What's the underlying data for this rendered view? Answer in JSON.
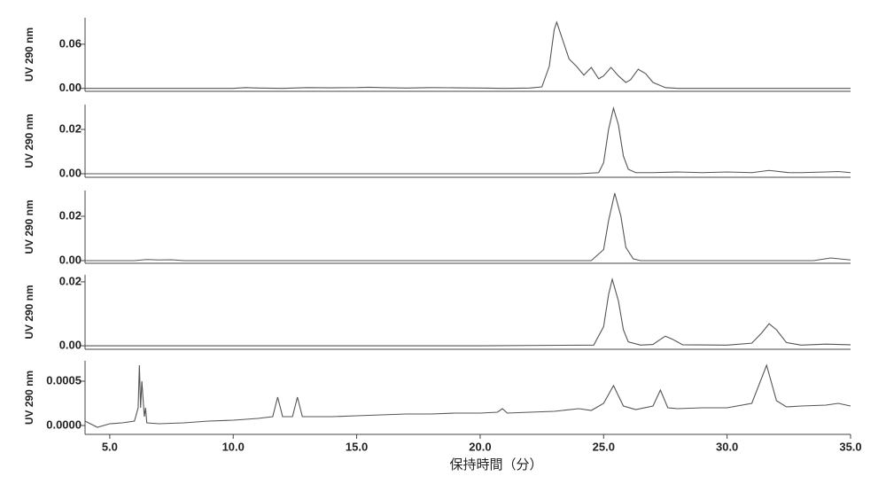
{
  "chart_data": [
    {
      "type": "line",
      "ylabel": "UV 290 nm",
      "color": "#555555",
      "xlim": [
        4,
        35
      ],
      "ylim": [
        -0.004,
        0.096
      ],
      "yticks": [
        {
          "value": 0,
          "label": "0.00"
        },
        0.06
      ],
      "x": [
        4,
        6,
        8,
        10,
        10.5,
        11,
        12,
        13,
        14,
        15,
        15.5,
        16,
        17,
        18,
        19,
        20,
        21,
        22,
        22.5,
        22.8,
        23.0,
        23.1,
        23.3,
        23.6,
        23.9,
        24.2,
        24.5,
        24.8,
        25.0,
        25.3,
        25.6,
        25.9,
        26.1,
        26.4,
        26.7,
        27.0,
        27.5,
        28,
        30,
        35
      ],
      "values": [
        0,
        0,
        0,
        0,
        0.001,
        0.0005,
        0,
        0.001,
        0.0008,
        0.001,
        0.0015,
        0.001,
        0.0005,
        0.001,
        0.0008,
        0.0005,
        0,
        0.0005,
        0.002,
        0.03,
        0.08,
        0.09,
        0.07,
        0.04,
        0.03,
        0.018,
        0.0285,
        0.013,
        0.017,
        0.0285,
        0.017,
        0.008,
        0.012,
        0.026,
        0.02,
        0.008,
        0.001,
        0,
        0,
        0
      ]
    },
    {
      "type": "line",
      "ylabel": "UV 290 nm",
      "color": "#555555",
      "xlim": [
        4,
        35
      ],
      "ylim": [
        -0.0016,
        0.0312
      ],
      "yticks": [
        {
          "value": 0,
          "label": "0.00"
        },
        0.02
      ],
      "x": [
        4,
        10,
        20,
        24,
        24.8,
        25.0,
        25.2,
        25.4,
        25.6,
        25.8,
        26.0,
        26.3,
        27,
        28,
        29,
        30,
        31,
        31.7,
        32.5,
        33,
        34,
        34.5,
        35
      ],
      "values": [
        0,
        0,
        0,
        0,
        0.0005,
        0.005,
        0.02,
        0.0296,
        0.022,
        0.008,
        0.002,
        0.0005,
        0.0005,
        0.0008,
        0.0005,
        0.0008,
        0.0005,
        0.0015,
        0.0005,
        0.0005,
        0.0008,
        0.001,
        0.0005
      ]
    },
    {
      "type": "line",
      "ylabel": "UV 290 nm",
      "color": "#555555",
      "xlim": [
        4,
        35
      ],
      "ylim": [
        -0.0012,
        0.0316
      ],
      "yticks": [
        {
          "value": 0,
          "label": "0.00"
        },
        0.02
      ],
      "x": [
        4,
        6,
        6.5,
        7,
        7.5,
        8,
        20,
        24.5,
        25.0,
        25.2,
        25.45,
        25.7,
        25.9,
        26.2,
        26.5,
        30,
        33.5,
        34.2,
        35
      ],
      "values": [
        0,
        0,
        0.0005,
        0.0003,
        0.0004,
        0,
        0,
        0,
        0.005,
        0.018,
        0.0304,
        0.02,
        0.006,
        0.0008,
        0,
        0,
        0,
        0.0012,
        0.0003
      ]
    },
    {
      "type": "line",
      "ylabel": "UV 290 nm",
      "color": "#555555",
      "xlim": [
        4,
        35
      ],
      "ylim": [
        -0.0011,
        0.0222
      ],
      "yticks": [
        {
          "value": 0,
          "label": "0.00"
        },
        0.02
      ],
      "x": [
        4,
        20,
        24.6,
        25.0,
        25.2,
        25.35,
        25.6,
        25.8,
        26.0,
        26.5,
        27.0,
        27.3,
        27.5,
        27.8,
        28.2,
        30,
        31.0,
        31.4,
        31.7,
        32.0,
        32.4,
        33,
        34,
        35
      ],
      "values": [
        0,
        0,
        0.0002,
        0.006,
        0.016,
        0.0208,
        0.014,
        0.005,
        0.0012,
        0.0002,
        0.0004,
        0.002,
        0.003,
        0.002,
        0.0003,
        0.0002,
        0.0008,
        0.004,
        0.0069,
        0.005,
        0.001,
        0.0002,
        0.0005,
        0.0003
      ]
    },
    {
      "type": "line",
      "ylabel": "UV 290 nm",
      "xlabel": "保持時間（分）",
      "color": "#555555",
      "xlim": [
        4,
        35
      ],
      "ylim": [
        -0.0001,
        0.00073
      ],
      "yticks": [
        {
          "value": 0,
          "label": "0.0000"
        },
        {
          "value": 0.0005,
          "label": "0.0005"
        }
      ],
      "xticks": [
        {
          "value": 5,
          "label": "5.0"
        },
        {
          "value": 10,
          "label": "10.0"
        },
        {
          "value": 15,
          "label": "15.0"
        },
        {
          "value": 20,
          "label": "20.0"
        },
        {
          "value": 25,
          "label": "25.0"
        },
        {
          "value": 30,
          "label": "30.0"
        },
        {
          "value": 35,
          "label": "35.0"
        }
      ],
      "x": [
        4,
        4.5,
        5,
        5.5,
        6.0,
        6.15,
        6.2,
        6.25,
        6.3,
        6.4,
        6.45,
        6.5,
        7,
        8,
        9,
        10,
        11,
        11.6,
        11.8,
        12.0,
        12.4,
        12.6,
        12.8,
        13,
        14,
        15,
        16,
        17,
        18,
        19,
        20,
        20.7,
        20.9,
        21.1,
        22,
        23,
        24,
        24.5,
        25.0,
        25.4,
        25.8,
        26.3,
        27.0,
        27.3,
        27.6,
        28,
        29,
        30,
        31.0,
        31.6,
        32.0,
        32.4,
        33,
        34,
        34.5,
        35
      ],
      "values": [
        5e-05,
        -2e-05,
        2e-05,
        3e-05,
        5e-05,
        0.0002,
        0.00068,
        0.0002,
        0.0005,
        0.0001,
        0.0002,
        3e-05,
        2e-05,
        3e-05,
        5e-05,
        6e-05,
        8e-05,
        0.0001,
        0.00032,
        0.0001,
        0.0001,
        0.00032,
        0.0001,
        0.0001,
        0.0001,
        0.00011,
        0.00012,
        0.00013,
        0.00013,
        0.00014,
        0.00014,
        0.00015,
        0.00019,
        0.00014,
        0.00015,
        0.00016,
        0.00019,
        0.00017,
        0.00025,
        0.00045,
        0.00022,
        0.00018,
        0.00022,
        0.0004,
        0.0002,
        0.00019,
        0.0002,
        0.0002,
        0.00025,
        0.00068,
        0.00028,
        0.00021,
        0.00022,
        0.00023,
        0.00025,
        0.00022
      ]
    }
  ]
}
